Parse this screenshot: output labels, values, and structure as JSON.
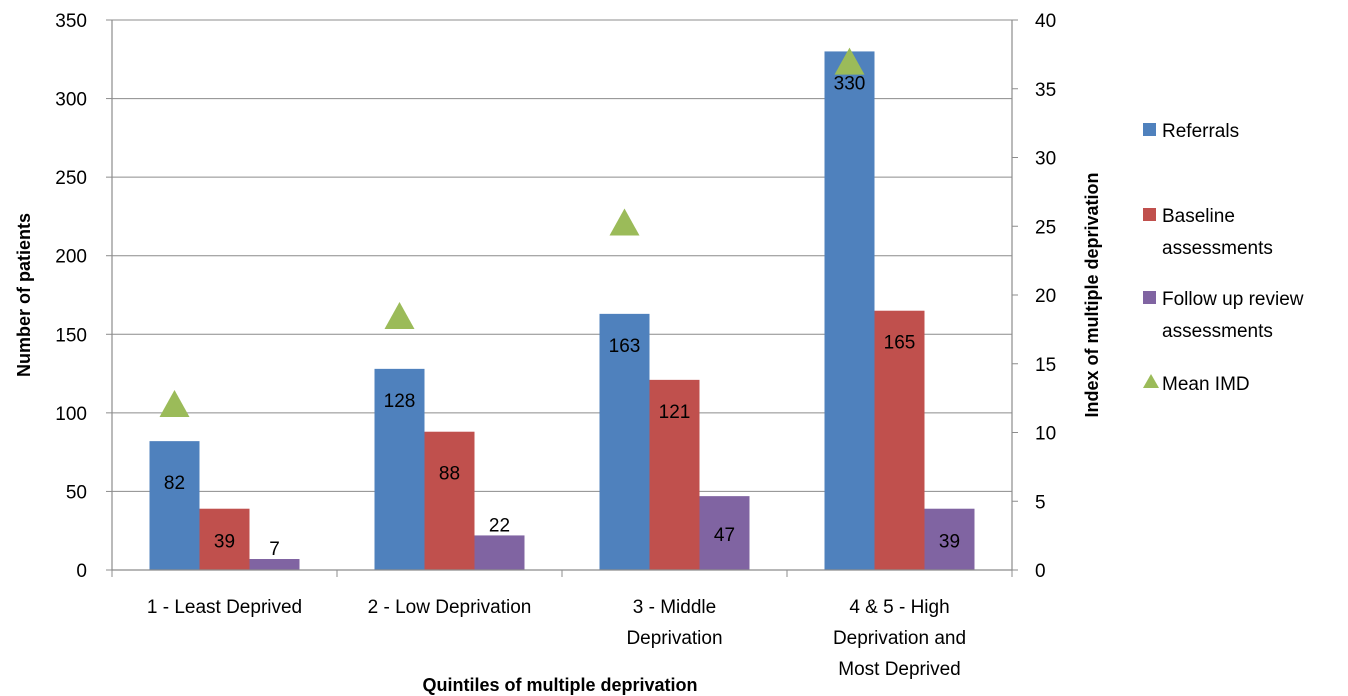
{
  "chart_data": {
    "type": "bar",
    "xlabel": "Quintiles of multiple deprivation",
    "ylabel": "Number of patients",
    "y2label": "Index of multiple deprivation",
    "ylim": [
      0,
      350
    ],
    "y_ticks": [
      0,
      50,
      100,
      150,
      200,
      250,
      300,
      350
    ],
    "y2lim": [
      0,
      40
    ],
    "y2_ticks": [
      0,
      5,
      10,
      15,
      20,
      25,
      30,
      35,
      40
    ],
    "grid": true,
    "legend_position": "right",
    "categories": [
      [
        "1 - Least Deprived"
      ],
      [
        "2 - Low Deprivation"
      ],
      [
        "3 - Middle",
        "Deprivation"
      ],
      [
        "4 & 5 - High",
        "Deprivation and",
        "Most Deprived"
      ]
    ],
    "series": [
      {
        "name": "Referrals",
        "type": "bar",
        "axis": "left",
        "color": "#4f81bd",
        "values": [
          82,
          128,
          163,
          330
        ],
        "labels": [
          "82",
          "128",
          "163",
          "330"
        ]
      },
      {
        "name": "Baseline assessments",
        "legend_lines": [
          "Baseline",
          "assessments"
        ],
        "type": "bar",
        "axis": "left",
        "color": "#c0504d",
        "values": [
          39,
          88,
          121,
          165
        ],
        "labels": [
          "39",
          "88",
          "121",
          "165"
        ]
      },
      {
        "name": "Follow up review assessments",
        "legend_lines": [
          "Follow up review",
          "assessments"
        ],
        "type": "bar",
        "axis": "left",
        "color": "#8064a2",
        "values": [
          7,
          22,
          47,
          39
        ],
        "labels": [
          "7",
          "22",
          "47",
          "39"
        ]
      },
      {
        "name": "Mean IMD",
        "legend_lines": [
          "Mean IMD"
        ],
        "type": "marker",
        "marker": "triangle",
        "axis": "right",
        "color": "#9bbb59",
        "values": [
          12,
          18.4,
          25.2,
          36.9
        ]
      }
    ]
  }
}
